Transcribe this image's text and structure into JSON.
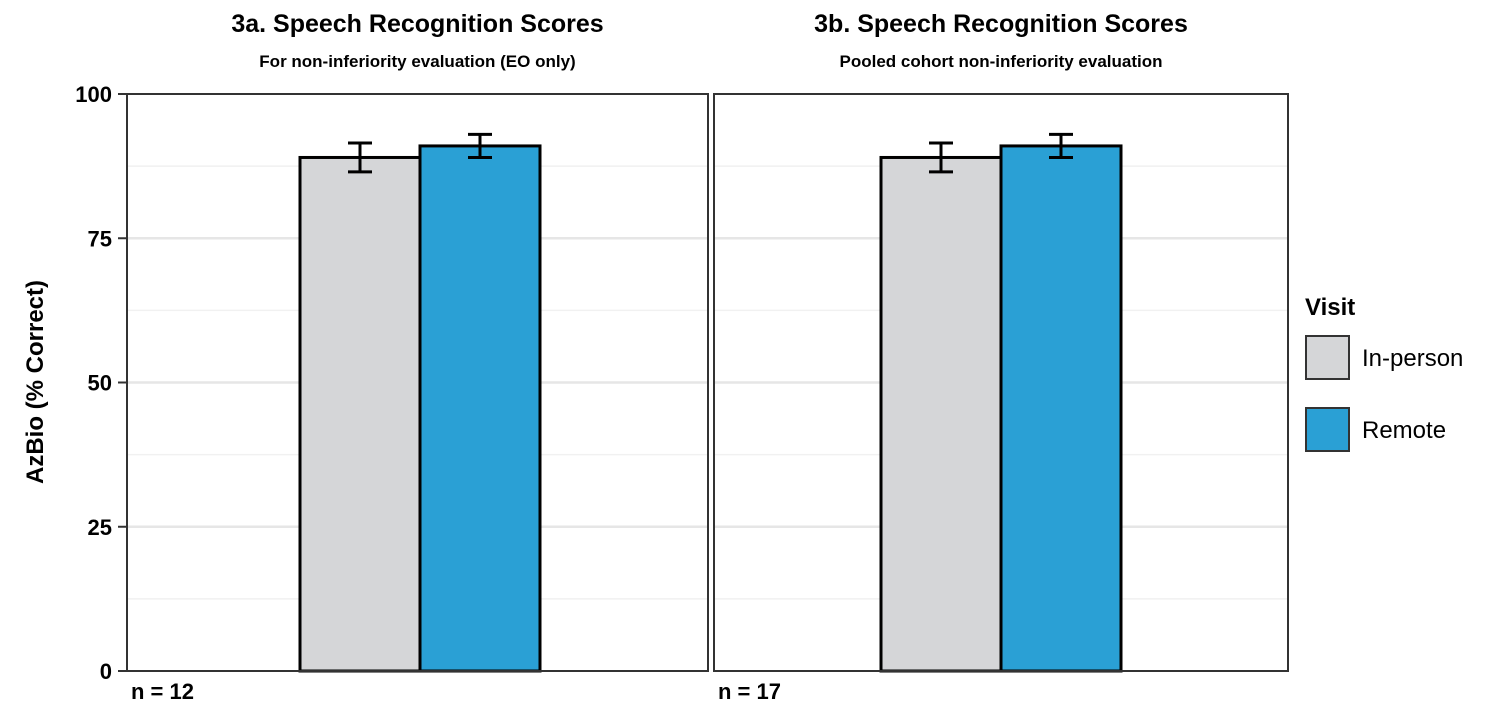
{
  "chart_data": {
    "type": "bar",
    "ylabel": "AzBio (% Correct)",
    "ylim": [
      0,
      100
    ],
    "yticks": [
      "0",
      "25",
      "50",
      "75",
      "100"
    ],
    "grid": true,
    "legend": {
      "title": "Visit",
      "placement": "right",
      "entries": [
        {
          "label": "In-person",
          "color": "#d5d6d8"
        },
        {
          "label": "Remote",
          "color": "#2aa0d5"
        }
      ]
    },
    "panels": [
      {
        "title": "3a. Speech Recognition Scores",
        "subtitle": "For non-inferiority evaluation (EO only)",
        "n_label": "n = 12",
        "series": [
          {
            "name": "In-person",
            "value": 89,
            "error_low": 86.5,
            "error_high": 91.5
          },
          {
            "name": "Remote",
            "value": 91,
            "error_low": 89,
            "error_high": 93
          }
        ]
      },
      {
        "title": "3b. Speech Recognition Scores",
        "subtitle": "Pooled cohort non-inferiority evaluation",
        "n_label": "n = 17",
        "series": [
          {
            "name": "In-person",
            "value": 89,
            "error_low": 86.5,
            "error_high": 91.5
          },
          {
            "name": "Remote",
            "value": 91,
            "error_low": 89,
            "error_high": 93
          }
        ]
      }
    ]
  }
}
